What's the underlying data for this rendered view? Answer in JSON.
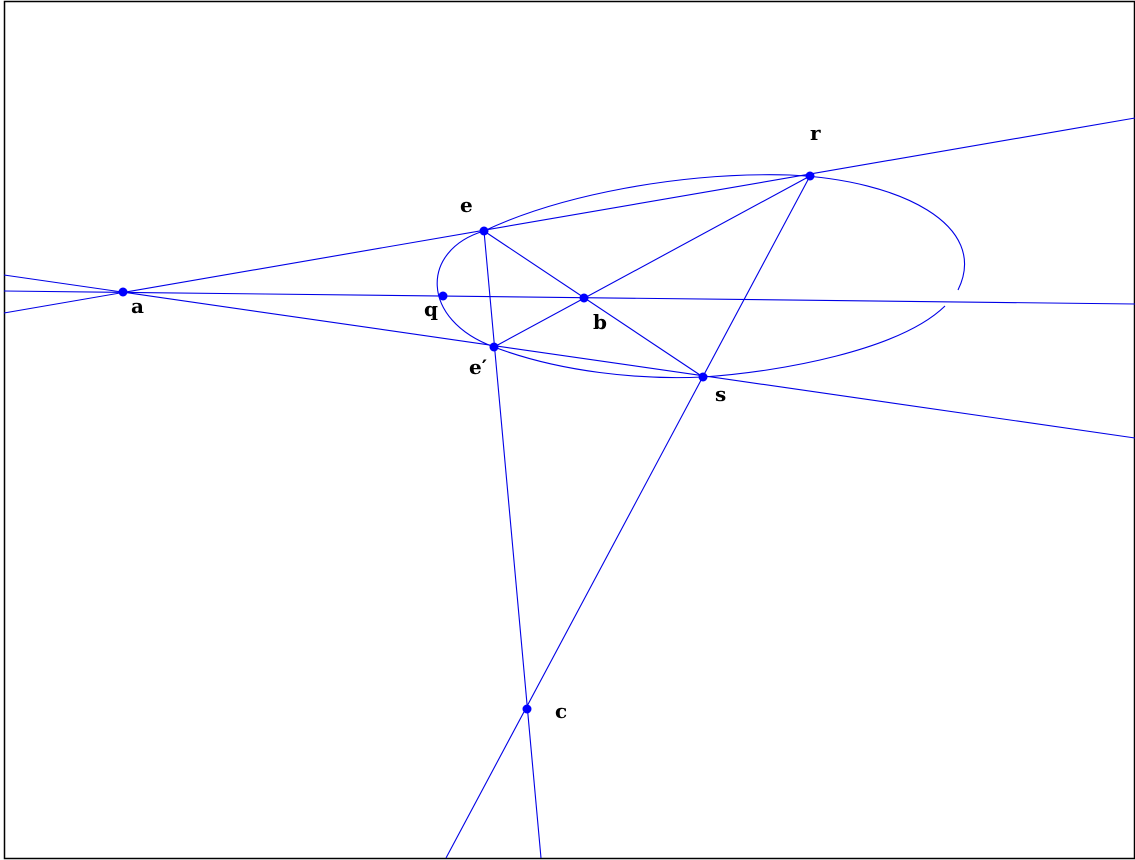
{
  "points": {
    "a": {
      "label": "a"
    },
    "q": {
      "label": "q"
    },
    "b": {
      "label": "b"
    },
    "e": {
      "label": "e"
    },
    "e_prime": {
      "label": "e′"
    },
    "r": {
      "label": "r"
    },
    "s": {
      "label": "s"
    },
    "c": {
      "label": "c"
    }
  },
  "colors": {
    "line": "#0000e6",
    "point": "#0000ff",
    "label": "#000000",
    "frame": "#000000"
  }
}
